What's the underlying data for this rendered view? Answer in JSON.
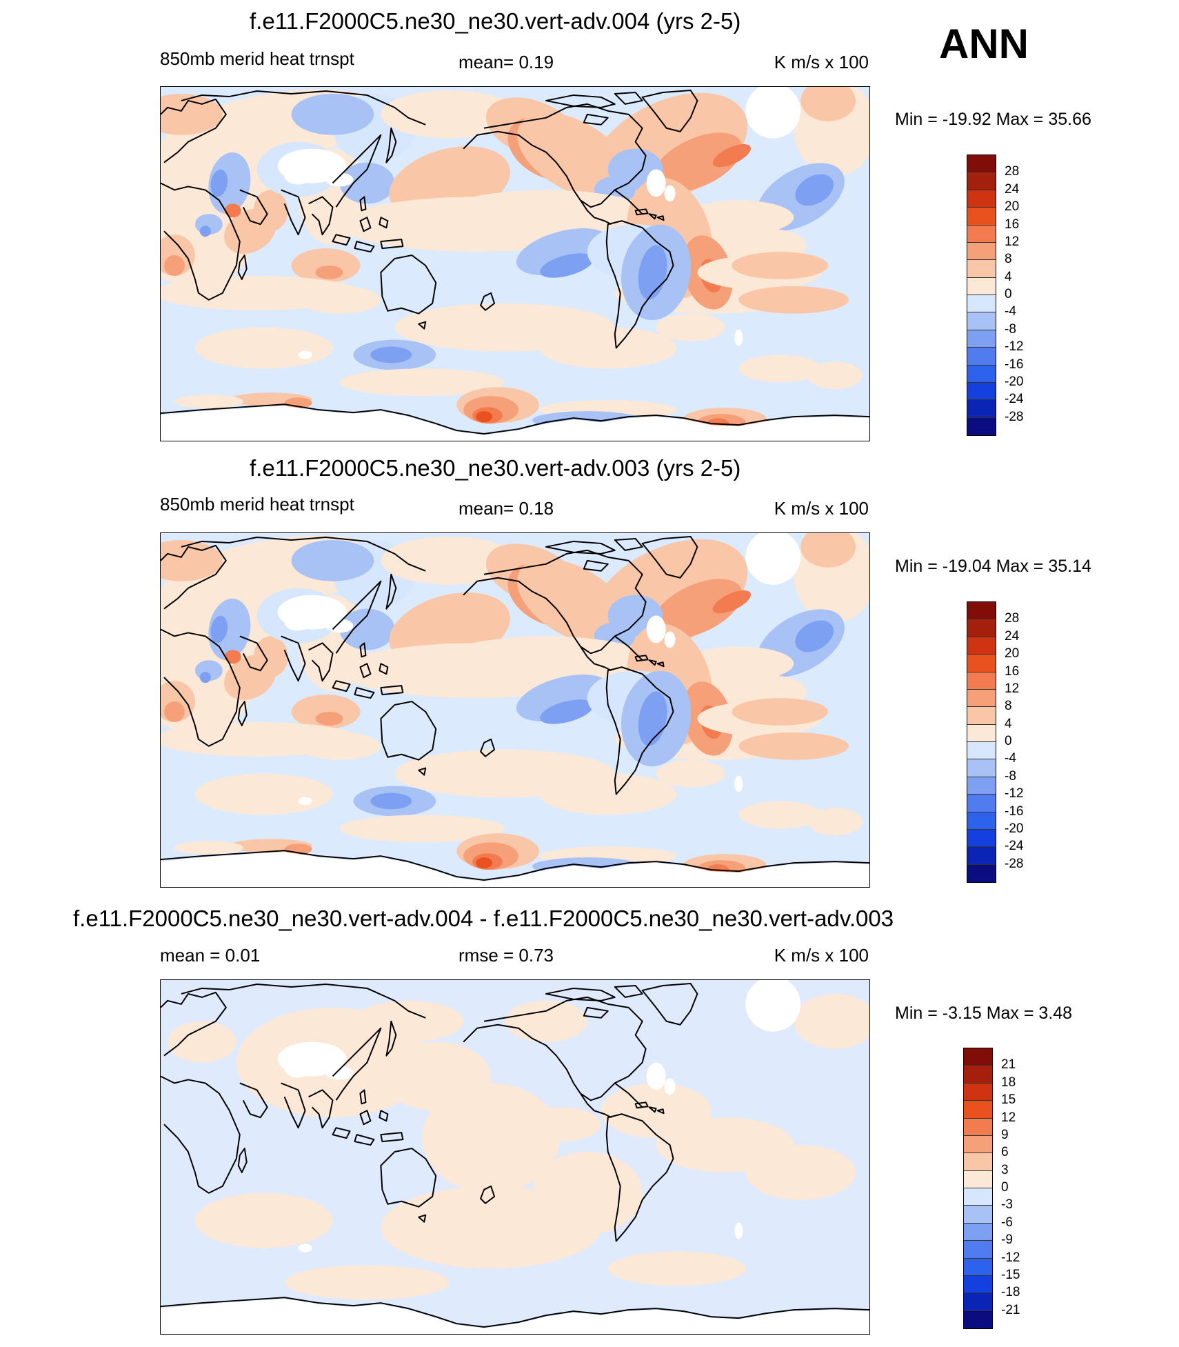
{
  "season": "ANN",
  "colors": {
    "base": "#dceafd",
    "palette_hex": [
      "#0b0c80",
      "#0a24b5",
      "#1540e0",
      "#2c62ec",
      "#507cf0",
      "#7ea0f2",
      "#a8c2f6",
      "#d6e6fc",
      "#fce8d6",
      "#f9c7a8",
      "#f6a07a",
      "#f27c4f",
      "#e9511f",
      "#cf3312",
      "#a5200c",
      "#810d08"
    ],
    "coast": "#000000"
  },
  "chart_data": [
    {
      "type": "contour-map",
      "title": "f.e11.F2000C5.ne30_ne30.vert-adv.004 (yrs 2-5)",
      "left_label": "850mb merid heat trnspt",
      "center_label": "mean=   0.19",
      "units": "K m/s x 100",
      "minmax": "Min = -19.92 Max =  35.66",
      "variable": "850mb meridional heat transport",
      "mean": 0.19,
      "min": -19.92,
      "max": 35.66,
      "levels": [
        28,
        24,
        20,
        16,
        12,
        8,
        4,
        0,
        -4,
        -8,
        -12,
        -16,
        -20,
        -24,
        -28
      ],
      "levels_text": [
        "28",
        "24",
        "20",
        "16",
        "12",
        "8",
        "4",
        "0",
        "-4",
        "-8",
        "-12",
        "-16",
        "-20",
        "-24",
        "-28"
      ]
    },
    {
      "type": "contour-map",
      "title": "f.e11.F2000C5.ne30_ne30.vert-adv.003 (yrs 2-5)",
      "left_label": "850mb merid heat trnspt",
      "center_label": "mean=   0.18",
      "units": "K m/s x 100",
      "minmax": "Min = -19.04 Max =  35.14",
      "variable": "850mb meridional heat transport",
      "mean": 0.18,
      "min": -19.04,
      "max": 35.14,
      "levels": [
        28,
        24,
        20,
        16,
        12,
        8,
        4,
        0,
        -4,
        -8,
        -12,
        -16,
        -20,
        -24,
        -28
      ],
      "levels_text": [
        "28",
        "24",
        "20",
        "16",
        "12",
        "8",
        "4",
        "0",
        "-4",
        "-8",
        "-12",
        "-16",
        "-20",
        "-24",
        "-28"
      ]
    },
    {
      "type": "contour-map",
      "title": "f.e11.F2000C5.ne30_ne30.vert-adv.004 - f.e11.F2000C5.ne30_ne30.vert-adv.003",
      "left_label": "mean =   0.01",
      "center_label": "rmse =   0.73",
      "units": "K m/s x 100",
      "minmax": "Min =  -3.15 Max =   3.48",
      "mean": 0.01,
      "rmse": 0.73,
      "min": -3.15,
      "max": 3.48,
      "levels": [
        21,
        18,
        15,
        12,
        9,
        6,
        3,
        0,
        -3,
        -6,
        -9,
        -12,
        -15,
        -18,
        -21
      ],
      "levels_text": [
        "21",
        "18",
        "15",
        "12",
        "9",
        "6",
        "3",
        "0",
        "-3",
        "-6",
        "-9",
        "-12",
        "-15",
        "-18",
        "-21"
      ]
    }
  ]
}
